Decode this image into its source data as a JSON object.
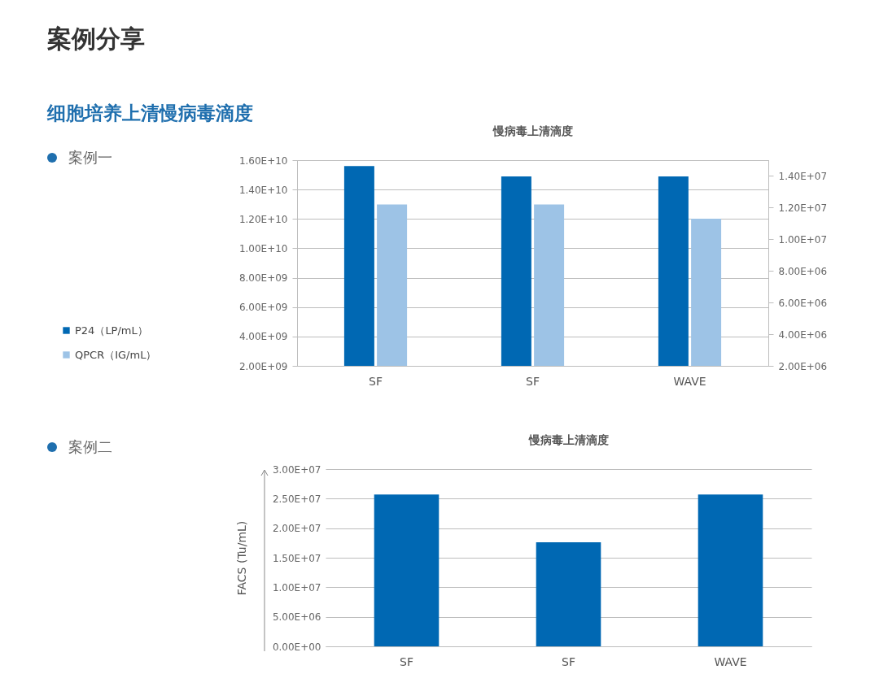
{
  "chart_data": [
    {
      "type": "bar",
      "title": "慢病毒上清滴度",
      "annotations": [
        "案例分享",
        "细胞培养上清慢病毒滴度",
        "案例一"
      ],
      "categories": [
        "SF",
        "SF",
        "WAVE"
      ],
      "series": [
        {
          "name": "P24（LP/mL）",
          "color": "#0068b3",
          "values": [
            15600000000,
            14900000000,
            14900000000
          ]
        },
        {
          "name": "QPCR（IG/mL）",
          "color": "#9dc3e6",
          "axis": "y2",
          "values": [
            12200000,
            12200000,
            11300000
          ]
        }
      ],
      "ylim": [
        2000000000,
        16000000000
      ],
      "yticks": [
        {
          "value": 2000000000,
          "label": "2.00E+09"
        },
        {
          "value": 4000000000,
          "label": "4.00E+09"
        },
        {
          "value": 6000000000,
          "label": "6.00E+09"
        },
        {
          "value": 8000000000,
          "label": "8.00E+09"
        },
        {
          "value": 10000000000,
          "label": "1.00E+10"
        },
        {
          "value": 12000000000,
          "label": "1.20E+10"
        },
        {
          "value": 14000000000,
          "label": "1.40E+10"
        },
        {
          "value": 16000000000,
          "label": "1.60E+10"
        }
      ],
      "y2lim": [
        2000000,
        15000000
      ],
      "y2ticks": [
        {
          "value": 2000000,
          "label": "2.00E+06"
        },
        {
          "value": 4000000,
          "label": "4.00E+06"
        },
        {
          "value": 6000000,
          "label": "6.00E+06"
        },
        {
          "value": 8000000,
          "label": "8.00E+06"
        },
        {
          "value": 10000000,
          "label": "1.00E+07"
        },
        {
          "value": 12000000,
          "label": "1.20E+07"
        },
        {
          "value": 14000000,
          "label": "1.40E+07"
        }
      ],
      "grid": "y",
      "legend": "left"
    },
    {
      "type": "bar",
      "title": "慢病毒上清滴度",
      "annotations": [
        "案例二"
      ],
      "ylabel": "FACS (Tu/mL)",
      "categories": [
        "SF",
        "SF",
        "WAVE"
      ],
      "series": [
        {
          "color": "#0068b3",
          "values": [
            25700000,
            17600000,
            25700000
          ]
        }
      ],
      "ylim": [
        0,
        30000000
      ],
      "yticks": [
        {
          "value": 0,
          "label": "0.00E+00"
        },
        {
          "value": 5000000,
          "label": "5.00E+06"
        },
        {
          "value": 10000000,
          "label": "1.00E+07"
        },
        {
          "value": 15000000,
          "label": "1.50E+07"
        },
        {
          "value": 20000000,
          "label": "2.00E+07"
        },
        {
          "value": 25000000,
          "label": "2.50E+07"
        },
        {
          "value": 30000000,
          "label": "3.00E+07"
        }
      ],
      "grid": "y"
    }
  ]
}
